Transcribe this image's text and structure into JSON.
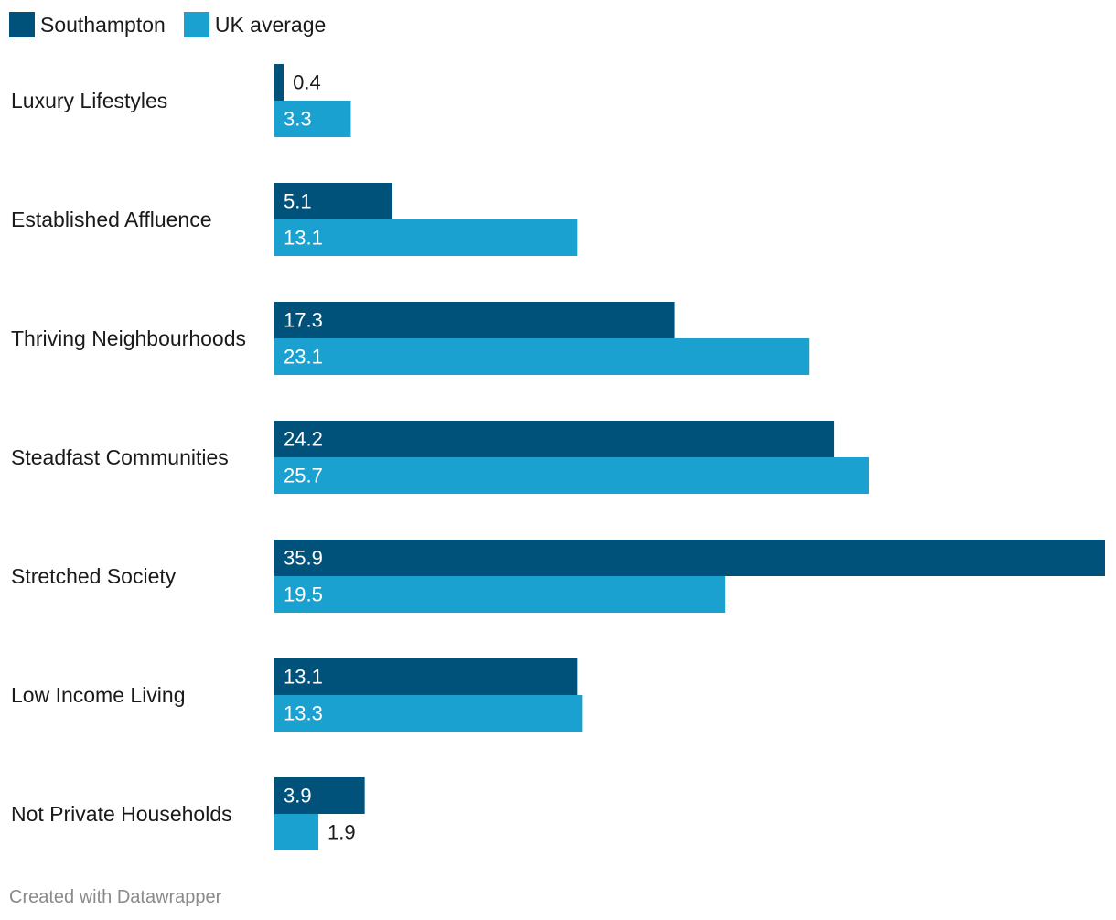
{
  "legend": {
    "items": [
      {
        "label": "Southampton",
        "color": "#00527a"
      },
      {
        "label": "UK average",
        "color": "#1aa1d0"
      }
    ]
  },
  "chart_data": {
    "type": "bar",
    "orientation": "horizontal",
    "categories": [
      "Luxury Lifestyles",
      "Established Affluence",
      "Thriving Neighbourhoods",
      "Steadfast Communities",
      "Stretched Society",
      "Low Income Living",
      "Not Private Households"
    ],
    "series": [
      {
        "name": "Southampton",
        "color": "#00527a",
        "values": [
          0.4,
          5.1,
          17.3,
          24.2,
          35.9,
          13.1,
          3.9
        ]
      },
      {
        "name": "UK average",
        "color": "#1aa1d0",
        "values": [
          3.3,
          13.1,
          23.1,
          25.7,
          19.5,
          13.3,
          1.9
        ]
      }
    ],
    "xlim": [
      0,
      35.9
    ],
    "legend_position": "top-left",
    "grid": false
  },
  "footer": {
    "credit": "Created with Datawrapper"
  }
}
